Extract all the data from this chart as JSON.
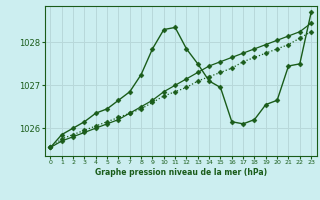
{
  "title": "Graphe pression niveau de la mer (hPa)",
  "bg_color": "#cceef0",
  "grid_color": "#aaaacc",
  "line_color": "#1a5c1a",
  "marker_color": "#1a5c1a",
  "xlim": [
    -0.5,
    23.5
  ],
  "ylim": [
    1025.35,
    1028.85
  ],
  "yticks": [
    1026,
    1027,
    1028
  ],
  "xticks": [
    0,
    1,
    2,
    3,
    4,
    5,
    6,
    7,
    8,
    9,
    10,
    11,
    12,
    13,
    14,
    15,
    16,
    17,
    18,
    19,
    20,
    21,
    22,
    23
  ],
  "series": [
    {
      "x": [
        0,
        1,
        2,
        3,
        4,
        5,
        6,
        7,
        8,
        9,
        10,
        11,
        12,
        13,
        14,
        15,
        16,
        17,
        18,
        19,
        20,
        21,
        22,
        23
      ],
      "y": [
        1025.55,
        1025.75,
        1025.85,
        1025.95,
        1026.05,
        1026.15,
        1026.25,
        1026.35,
        1026.45,
        1026.6,
        1026.75,
        1026.85,
        1026.95,
        1027.1,
        1027.2,
        1027.3,
        1027.4,
        1027.55,
        1027.65,
        1027.75,
        1027.85,
        1027.95,
        1028.1,
        1028.25
      ],
      "linestyle": "dotted",
      "linewidth": 0.9,
      "markersize": 2.5
    },
    {
      "x": [
        0,
        1,
        2,
        3,
        4,
        5,
        6,
        7,
        8,
        9,
        10,
        11,
        12,
        13,
        14,
        15,
        16,
        17,
        18,
        19,
        20,
        21,
        22,
        23
      ],
      "y": [
        1025.55,
        1025.7,
        1025.8,
        1025.9,
        1026.0,
        1026.1,
        1026.2,
        1026.35,
        1026.5,
        1026.65,
        1026.85,
        1027.0,
        1027.15,
        1027.3,
        1027.45,
        1027.55,
        1027.65,
        1027.75,
        1027.85,
        1027.95,
        1028.05,
        1028.15,
        1028.25,
        1028.45
      ],
      "linestyle": "-",
      "linewidth": 0.9,
      "markersize": 2.5
    },
    {
      "x": [
        0,
        1,
        2,
        3,
        4,
        5,
        6,
        7,
        8,
        9,
        10,
        11,
        12,
        13,
        14,
        15,
        16,
        17,
        18,
        19,
        20,
        21,
        22,
        23
      ],
      "y": [
        1025.55,
        1025.85,
        1026.0,
        1026.15,
        1026.35,
        1026.45,
        1026.65,
        1026.85,
        1027.25,
        1027.85,
        1028.3,
        1028.35,
        1027.85,
        1027.5,
        1027.1,
        1026.95,
        1026.15,
        1026.1,
        1026.2,
        1026.55,
        1026.65,
        1027.45,
        1027.5,
        1028.7
      ],
      "linestyle": "-",
      "linewidth": 1.0,
      "markersize": 2.5
    }
  ]
}
